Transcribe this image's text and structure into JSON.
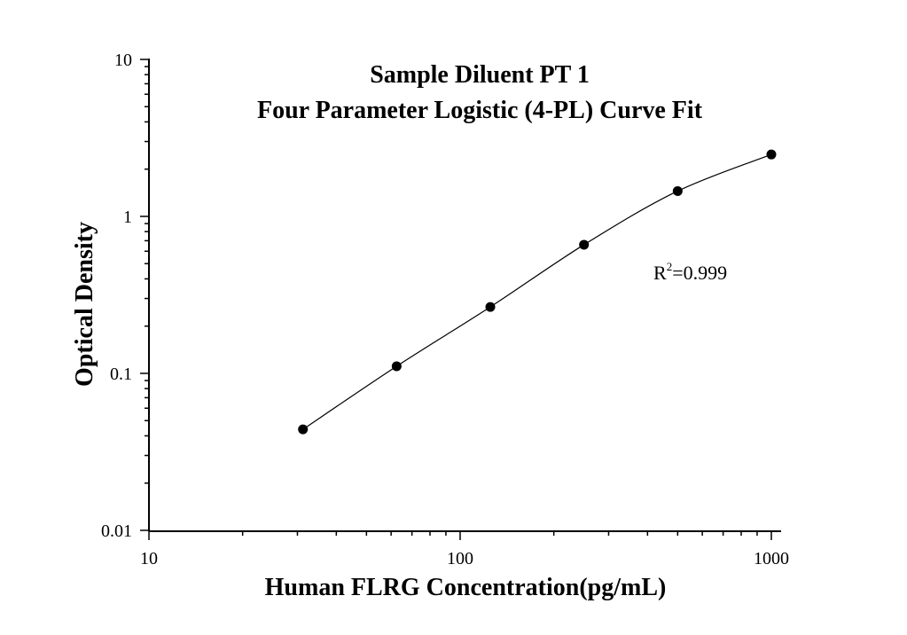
{
  "chart_data": {
    "type": "scatter",
    "title_lines": [
      "Sample Diluent PT 1",
      "Four Parameter Logistic (4-PL) Curve Fit"
    ],
    "xlabel": "Human FLRG Concentration(pg/mL)",
    "ylabel": "Optical Density",
    "xscale": "log",
    "yscale": "log",
    "xlim": [
      10,
      1000
    ],
    "ylim": [
      0.01,
      10
    ],
    "x_ticks": [
      {
        "value": 10,
        "label": "10"
      },
      {
        "value": 100,
        "label": "100"
      },
      {
        "value": 1000,
        "label": "1000"
      }
    ],
    "y_ticks": [
      {
        "value": 0.01,
        "label": "0.01"
      },
      {
        "value": 0.1,
        "label": "0.1"
      },
      {
        "value": 1,
        "label": "1"
      },
      {
        "value": 10,
        "label": "10"
      }
    ],
    "points": [
      {
        "x": 31.25,
        "y": 0.044
      },
      {
        "x": 62.5,
        "y": 0.111
      },
      {
        "x": 125,
        "y": 0.265
      },
      {
        "x": 250,
        "y": 0.66
      },
      {
        "x": 500,
        "y": 1.45
      },
      {
        "x": 1000,
        "y": 2.48
      }
    ],
    "fit": {
      "type": "4PL",
      "x_range": [
        31.25,
        1000
      ]
    },
    "annotation": {
      "base": "R",
      "sup": "2",
      "rest": "=0.999"
    },
    "grid": false,
    "legend": "none"
  }
}
